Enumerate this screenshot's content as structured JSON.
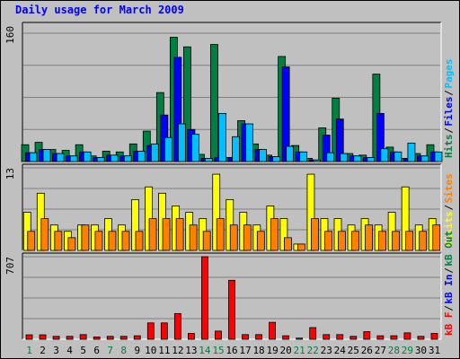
{
  "chart_data": {
    "type": "bar",
    "title": "Daily usage for March 2009",
    "x": [
      1,
      2,
      3,
      4,
      5,
      6,
      7,
      8,
      9,
      10,
      11,
      12,
      13,
      14,
      15,
      16,
      17,
      18,
      19,
      20,
      21,
      22,
      23,
      24,
      25,
      26,
      27,
      28,
      29,
      30,
      31
    ],
    "weekend_days": [
      1,
      7,
      8,
      14,
      15,
      21,
      22,
      28,
      29
    ],
    "panels": [
      {
        "id": "hits",
        "ymax_label": "160",
        "ylim": [
          0,
          160
        ],
        "series": [
          {
            "name": "Hits",
            "color": "#008040",
            "values": [
              21,
              24,
              15,
              14,
              21,
              7,
              13,
              12,
              22,
              38,
              86,
              155,
              143,
              9,
              146,
              5,
              51,
              22,
              8,
              131,
              20,
              4,
              42,
              79,
              10,
              8,
              109,
              18,
              4,
              10,
              21
            ]
          },
          {
            "name": "Files",
            "color": "#0000ff",
            "values": [
              11,
              15,
              10,
              7,
              12,
              5,
              8,
              7,
              13,
              20,
              58,
              130,
              40,
              4,
              5,
              5,
              47,
              15,
              6,
              118,
              12,
              2,
              33,
              53,
              7,
              5,
              60,
              12,
              3,
              7,
              12
            ]
          },
          {
            "name": "Pages",
            "color": "#00c0ff",
            "values": [
              11,
              15,
              10,
              7,
              12,
              5,
              8,
              7,
              13,
              22,
              30,
              47,
              34,
              4,
              60,
              31,
              47,
              15,
              6,
              19,
              12,
              2,
              11,
              10,
              7,
              5,
              16,
              12,
              23,
              7,
              12
            ]
          }
        ],
        "legend": [
          {
            "name": "Hits",
            "color": "#008040"
          },
          {
            "name": "Files",
            "color": "#0000ff"
          },
          {
            "name": "Pages",
            "color": "#00c0ff"
          }
        ]
      },
      {
        "id": "visits",
        "ymax_label": "13",
        "ylim": [
          0,
          13
        ],
        "series": [
          {
            "name": "Visits",
            "color": "#ffff00",
            "values": [
              6,
              9,
              4,
              3,
              4,
              4,
              5,
              4,
              8,
              10,
              9,
              7,
              6,
              5,
              12,
              8,
              6,
              4,
              7,
              5,
              1,
              12,
              5,
              5,
              4,
              5,
              4,
              6,
              10,
              4,
              5
            ]
          },
          {
            "name": "Sites",
            "color": "#ff8000",
            "values": [
              3,
              5,
              3,
              2,
              4,
              3,
              3,
              3,
              3,
              5,
              5,
              5,
              4,
              3,
              5,
              4,
              4,
              3,
              5,
              2,
              1,
              5,
              3,
              3,
              3,
              4,
              3,
              3,
              3,
              3,
              4
            ]
          }
        ],
        "legend": [
          {
            "name": "Visits",
            "color": "#ffff00"
          },
          {
            "name": "Sites",
            "color": "#ff8000"
          }
        ]
      },
      {
        "id": "kbytes",
        "ymax_label": "707",
        "ylim": [
          0,
          707
        ],
        "series": [
          {
            "name": "kB F",
            "color": "#ff0000",
            "values": [
              38,
              38,
              25,
              25,
              40,
              20,
              25,
              25,
              30,
              140,
              140,
              220,
              50,
              707,
              70,
              505,
              40,
              40,
              145,
              30,
              10,
              100,
              40,
              40,
              25,
              65,
              30,
              30,
              55,
              25,
              50
            ]
          }
        ],
        "legend": [
          {
            "name": "kB F",
            "color": "#ff0000"
          },
          {
            "name": "kB In",
            "color": "#0000ff"
          },
          {
            "name": "kB Out",
            "color": "#008040"
          }
        ]
      }
    ]
  }
}
